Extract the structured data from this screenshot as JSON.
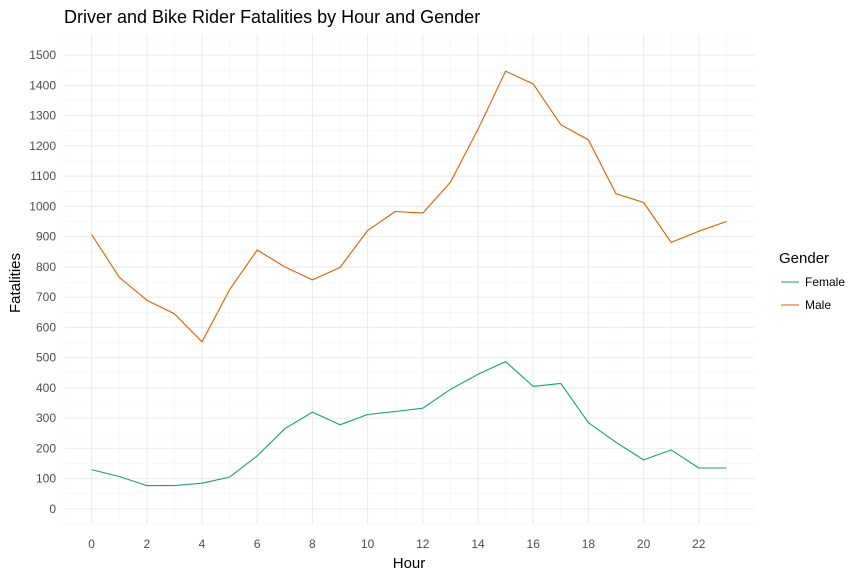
{
  "chart_data": {
    "type": "line",
    "title": "Driver and Bike Rider Fatalities by Hour and Gender",
    "xlabel": "Hour",
    "ylabel": "Fatalities",
    "x": [
      0,
      1,
      2,
      3,
      4,
      5,
      6,
      7,
      8,
      9,
      10,
      11,
      12,
      13,
      14,
      15,
      16,
      17,
      18,
      19,
      20,
      21,
      22,
      23
    ],
    "xticks": [
      0,
      2,
      4,
      6,
      8,
      10,
      12,
      14,
      16,
      18,
      20,
      22
    ],
    "yticks": [
      0,
      100,
      200,
      300,
      400,
      500,
      600,
      700,
      800,
      900,
      1000,
      1100,
      1200,
      1300,
      1400,
      1500
    ],
    "xlim": [
      -1,
      24
    ],
    "ylim": [
      -50,
      1570
    ],
    "grid": true,
    "legend": {
      "title": "Gender",
      "position": "right"
    },
    "series": [
      {
        "name": "Female",
        "color": "#1b9e77",
        "values": [
          130,
          107,
          77,
          77,
          85,
          105,
          175,
          265,
          320,
          278,
          312,
          322,
          333,
          395,
          445,
          487,
          405,
          415,
          285,
          220,
          162,
          195,
          135,
          135
        ]
      },
      {
        "name": "Male",
        "color": "#d95f02",
        "values": [
          907,
          766,
          690,
          645,
          552,
          725,
          856,
          800,
          757,
          798,
          920,
          983,
          978,
          1080,
          1255,
          1447,
          1405,
          1270,
          1220,
          1042,
          1013,
          881,
          918,
          950
        ]
      }
    ]
  }
}
